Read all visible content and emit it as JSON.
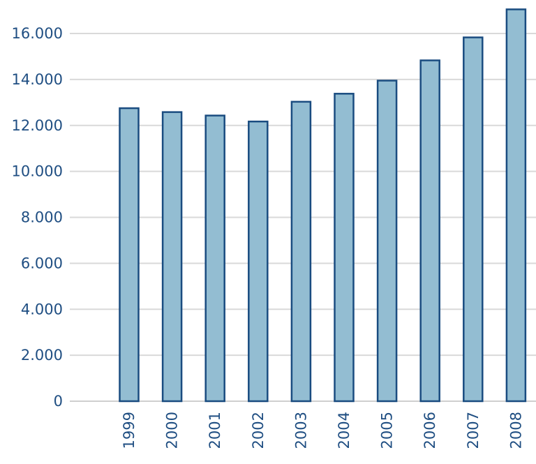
{
  "chart_data": {
    "type": "bar",
    "categories": [
      "1999",
      "2000",
      "2001",
      "2002",
      "2003",
      "2004",
      "2005",
      "2006",
      "2007",
      "2008"
    ],
    "values": [
      12750,
      12580,
      12430,
      12170,
      13030,
      13380,
      13950,
      14830,
      15830,
      17050
    ],
    "title": "",
    "xlabel": "",
    "ylabel": "",
    "ylim": [
      0,
      17000
    ],
    "yticks": [
      0,
      2000,
      4000,
      6000,
      8000,
      10000,
      12000,
      14000,
      16000
    ],
    "ytick_labels": [
      "0",
      "2.000",
      "4.000",
      "6.000",
      "8.000",
      "10.000",
      "12.000",
      "14.000",
      "16.000"
    ],
    "grid": "horizontal",
    "legend": "none",
    "colors": {
      "bar_fill": "#93bdd2",
      "bar_stroke": "#1a4c80",
      "tick_text": "#1f4e82",
      "grid": "#d9d9d9"
    }
  }
}
